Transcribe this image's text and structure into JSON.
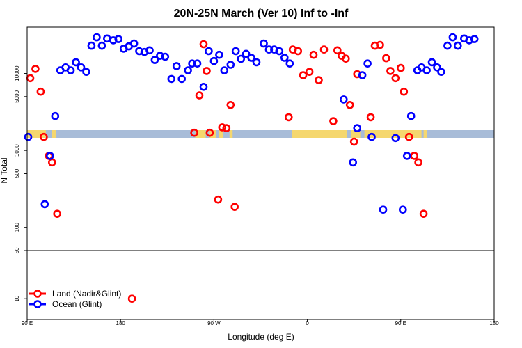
{
  "chart_data": {
    "type": "scatter",
    "title": "20N-25N March (Ver 10)   Inf to -Inf",
    "xlabel": "Longitude (deg E)",
    "ylabel": "N Total",
    "x_domain_deg_east_unwrapped": [
      90,
      450
    ],
    "x_ticks": [
      {
        "v": 90,
        "label": "90 E"
      },
      {
        "v": 180,
        "label": "180"
      },
      {
        "v": 270,
        "label": "90 W"
      },
      {
        "v": 360,
        "label": "0"
      },
      {
        "v": 450,
        "label": "90 E"
      },
      {
        "v": 540,
        "label": "180"
      }
    ],
    "x_display_range": [
      90,
      540
    ],
    "y_scale": "log",
    "y_ticks_upper": [
      {
        "v": 100,
        "label": "100"
      },
      {
        "v": 500,
        "label": "500"
      },
      {
        "v": 1000,
        "label": "1000"
      },
      {
        "v": 5000,
        "label": "5000"
      },
      {
        "v": 10000,
        "label": "10000"
      }
    ],
    "y_ticks_lower": [
      {
        "v": 10,
        "label": "10"
      },
      {
        "v": 50,
        "label": "50"
      }
    ],
    "series": [
      {
        "name": "Land (Nadir&Glint)",
        "color": "#ff0000",
        "points": [
          [
            93,
            8700
          ],
          [
            98,
            11500
          ],
          [
            103,
            5800
          ],
          [
            106,
            1500
          ],
          [
            111,
            850
          ],
          [
            114,
            700
          ],
          [
            119,
            150
          ],
          [
            191,
            10
          ],
          [
            251,
            1700
          ],
          [
            256,
            5200
          ],
          [
            260,
            24000
          ],
          [
            263,
            10800
          ],
          [
            266,
            1700
          ],
          [
            274,
            230
          ],
          [
            278,
            2000
          ],
          [
            282,
            1950
          ],
          [
            286,
            3900
          ],
          [
            290,
            185
          ],
          [
            342,
            2700
          ],
          [
            346,
            20500
          ],
          [
            351,
            19500
          ],
          [
            356,
            9500
          ],
          [
            362,
            10500
          ],
          [
            366,
            17500
          ],
          [
            371,
            8200
          ],
          [
            376,
            20500
          ],
          [
            385,
            2400
          ],
          [
            389,
            20000
          ],
          [
            393,
            17000
          ],
          [
            397,
            15600
          ],
          [
            401,
            3900
          ],
          [
            405,
            1300
          ],
          [
            408,
            9800
          ],
          [
            421,
            2700
          ],
          [
            425,
            23000
          ],
          [
            430,
            23500
          ],
          [
            436,
            15800
          ],
          [
            440,
            10800
          ],
          [
            445,
            8700
          ],
          [
            450,
            11800
          ],
          [
            453,
            5800
          ],
          [
            458,
            1500
          ],
          [
            463,
            850
          ],
          [
            467,
            700
          ],
          [
            472,
            150
          ]
        ]
      },
      {
        "name": "Ocean (Glint)",
        "color": "#0000ff",
        "points": [
          [
            91,
            1500
          ],
          [
            107,
            200
          ],
          [
            112,
            850
          ],
          [
            117,
            2800
          ],
          [
            122,
            11000
          ],
          [
            127,
            12000
          ],
          [
            132,
            11000
          ],
          [
            137,
            14000
          ],
          [
            142,
            12000
          ],
          [
            147,
            10500
          ],
          [
            152,
            23000
          ],
          [
            157,
            29500
          ],
          [
            162,
            23000
          ],
          [
            167,
            28500
          ],
          [
            173,
            27000
          ],
          [
            178,
            28000
          ],
          [
            183,
            21000
          ],
          [
            188,
            22500
          ],
          [
            193,
            24500
          ],
          [
            198,
            19500
          ],
          [
            203,
            19000
          ],
          [
            208,
            20000
          ],
          [
            213,
            15000
          ],
          [
            218,
            17000
          ],
          [
            223,
            16500
          ],
          [
            229,
            8500
          ],
          [
            234,
            12500
          ],
          [
            239,
            8500
          ],
          [
            245,
            11000
          ],
          [
            249,
            13500
          ],
          [
            254,
            13500
          ],
          [
            260,
            6700
          ],
          [
            265,
            19500
          ],
          [
            270,
            14500
          ],
          [
            275,
            17500
          ],
          [
            280,
            11000
          ],
          [
            286,
            13000
          ],
          [
            291,
            19500
          ],
          [
            296,
            15500
          ],
          [
            301,
            18000
          ],
          [
            306,
            16000
          ],
          [
            311,
            14000
          ],
          [
            318,
            24500
          ],
          [
            323,
            20500
          ],
          [
            328,
            20500
          ],
          [
            333,
            19500
          ],
          [
            338,
            16000
          ],
          [
            343,
            13500
          ],
          [
            395,
            4600
          ],
          [
            404,
            700
          ],
          [
            408,
            1950
          ],
          [
            413,
            9500
          ],
          [
            418,
            13500
          ],
          [
            422,
            1500
          ],
          [
            433,
            170
          ],
          [
            445,
            1450
          ],
          [
            452,
            170
          ],
          [
            456,
            850
          ],
          [
            460,
            2800
          ],
          [
            466,
            11000
          ],
          [
            470,
            12000
          ],
          [
            475,
            11000
          ],
          [
            480,
            14000
          ],
          [
            485,
            12000
          ],
          [
            489,
            10500
          ],
          [
            495,
            23000
          ],
          [
            500,
            29500
          ],
          [
            505,
            23000
          ],
          [
            511,
            28500
          ],
          [
            516,
            27000
          ],
          [
            521,
            28000
          ]
        ]
      }
    ],
    "legend": {
      "position": "bottom-left",
      "entries": [
        "Land (Nadir&Glint)",
        "Ocean (Glint)"
      ]
    },
    "map_band": {
      "latitude_range": "20N-25N",
      "land_color": "#f5d76e",
      "ocean_color": "#a8bcd8"
    }
  }
}
